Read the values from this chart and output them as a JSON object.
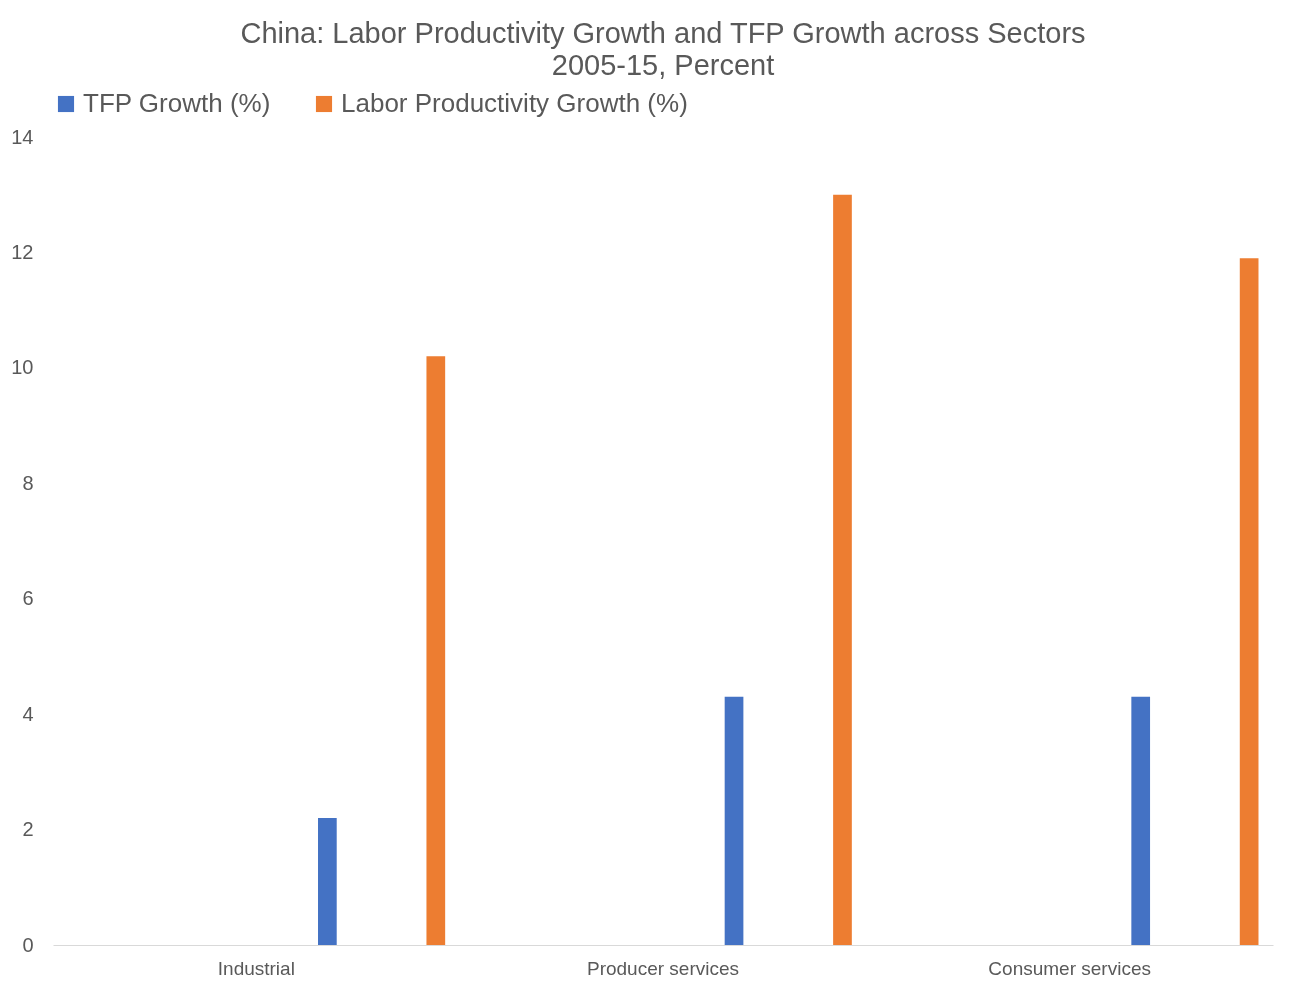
{
  "chart_data": {
    "type": "bar",
    "title": "China: Labor Productivity Growth and TFP Growth across Sectors",
    "subtitle": "2005-15, Percent",
    "categories": [
      "Industrial",
      "Producer services",
      "Consumer services"
    ],
    "series": [
      {
        "name": "TFP Growth (%)",
        "color": "#4472c4",
        "values": [
          2.2,
          4.3,
          4.3
        ]
      },
      {
        "name": "Labor Productivity Growth (%)",
        "color": "#ed7d31",
        "values": [
          10.2,
          13.0,
          11.9
        ]
      }
    ],
    "ylim": [
      0,
      14
    ],
    "yticks": [
      0,
      2,
      4,
      6,
      8,
      10,
      12,
      14
    ],
    "grid": false,
    "legend": "top"
  }
}
